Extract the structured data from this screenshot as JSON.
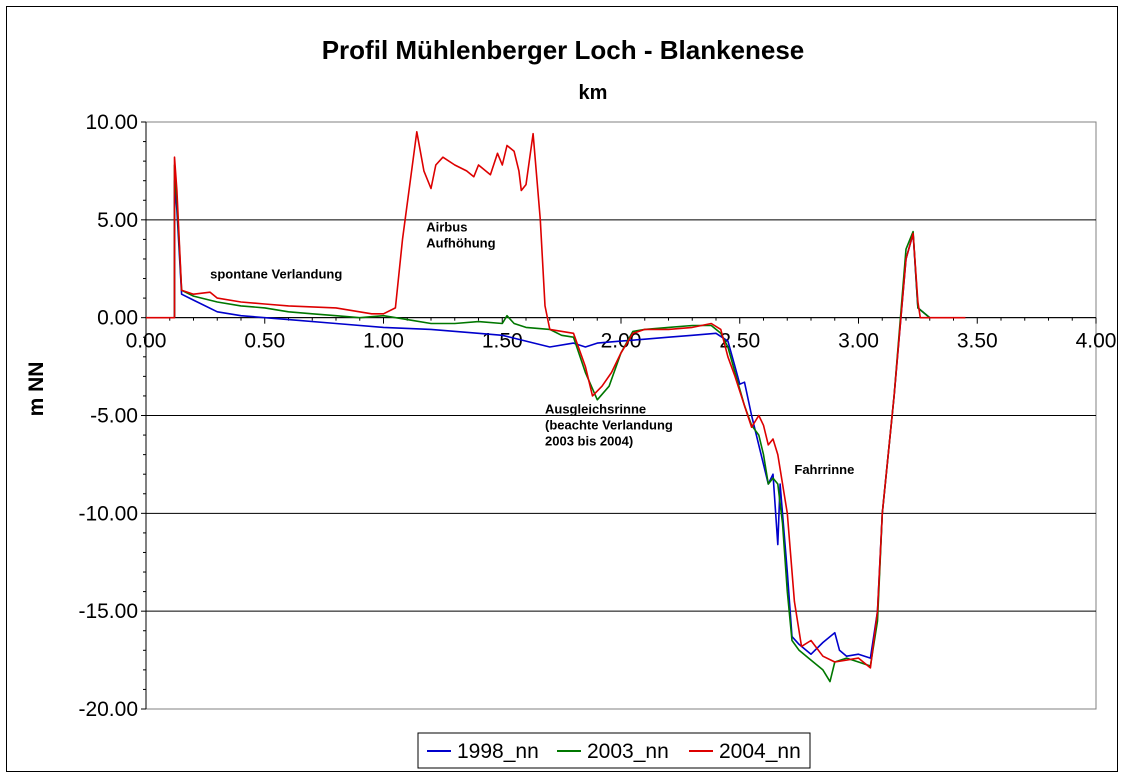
{
  "chart_data": {
    "type": "line",
    "title": "Profil Mühlenberger Loch - Blankenese",
    "xlabel": "km",
    "ylabel": "m NN",
    "xlim": [
      0,
      4
    ],
    "ylim": [
      -20,
      10
    ],
    "xticks": [
      "0.00",
      "0.50",
      "1.00",
      "1.50",
      "2.00",
      "2.50",
      "3.00",
      "3.50",
      "4.00"
    ],
    "yticks": [
      "10.00",
      "5.00",
      "0.00",
      "-5.00",
      "-10.00",
      "-15.00",
      "-20.00"
    ],
    "grid": "horizontal",
    "legend": "bottom",
    "annotations": [
      {
        "lines": [
          "spontane Verlandung"
        ],
        "x": 0.27,
        "y": 2.0
      },
      {
        "lines": [
          "Airbus",
          "Aufhöhung"
        ],
        "x": 1.18,
        "y": 4.4
      },
      {
        "lines": [
          "Ausgleichsrinne",
          "(beachte Verlandung",
          "2003 bis 2004)"
        ],
        "x": 1.68,
        "y": -4.9
      },
      {
        "lines": [
          "Fahrrinne"
        ],
        "x": 2.73,
        "y": -8.0
      }
    ],
    "series": [
      {
        "name": "1998_nn",
        "color": "#0000cc",
        "points": [
          [
            0.12,
            0
          ],
          [
            0.12,
            7.0
          ],
          [
            0.13,
            5.5
          ],
          [
            0.15,
            1.2
          ],
          [
            0.2,
            0.9
          ],
          [
            0.3,
            0.3
          ],
          [
            0.4,
            0.1
          ],
          [
            0.6,
            -0.1
          ],
          [
            0.8,
            -0.3
          ],
          [
            1.0,
            -0.5
          ],
          [
            1.2,
            -0.6
          ],
          [
            1.4,
            -0.8
          ],
          [
            1.5,
            -0.9
          ],
          [
            1.6,
            -1.2
          ],
          [
            1.7,
            -1.5
          ],
          [
            1.8,
            -1.3
          ],
          [
            1.85,
            -1.5
          ],
          [
            1.9,
            -1.3
          ],
          [
            2.0,
            -1.2
          ],
          [
            2.1,
            -1.1
          ],
          [
            2.2,
            -1.0
          ],
          [
            2.3,
            -0.9
          ],
          [
            2.4,
            -0.8
          ],
          [
            2.45,
            -1.2
          ],
          [
            2.48,
            -2.5
          ],
          [
            2.5,
            -3.4
          ],
          [
            2.52,
            -3.3
          ],
          [
            2.55,
            -5.0
          ],
          [
            2.6,
            -7.5
          ],
          [
            2.62,
            -8.5
          ],
          [
            2.64,
            -8.0
          ],
          [
            2.66,
            -11.6
          ],
          [
            2.67,
            -8.5
          ],
          [
            2.68,
            -10.0
          ],
          [
            2.7,
            -13.0
          ],
          [
            2.72,
            -16.3
          ],
          [
            2.75,
            -16.7
          ],
          [
            2.8,
            -17.2
          ],
          [
            2.85,
            -16.6
          ],
          [
            2.9,
            -16.1
          ],
          [
            2.92,
            -17.0
          ],
          [
            2.95,
            -17.3
          ],
          [
            3.0,
            -17.2
          ],
          [
            3.05,
            -17.4
          ],
          [
            3.08,
            -15.0
          ],
          [
            3.1,
            -10.0
          ],
          [
            3.15,
            -4.0
          ],
          [
            3.2,
            3.0
          ],
          [
            3.23,
            4.3
          ],
          [
            3.25,
            0.5
          ],
          [
            3.3,
            0
          ]
        ]
      },
      {
        "name": "2003_nn",
        "color": "#007700",
        "points": [
          [
            0.12,
            0
          ],
          [
            0.12,
            7.8
          ],
          [
            0.13,
            6.0
          ],
          [
            0.15,
            1.4
          ],
          [
            0.2,
            1.1
          ],
          [
            0.3,
            0.8
          ],
          [
            0.4,
            0.6
          ],
          [
            0.5,
            0.5
          ],
          [
            0.6,
            0.3
          ],
          [
            0.7,
            0.2
          ],
          [
            0.8,
            0.1
          ],
          [
            0.9,
            0.0
          ],
          [
            1.0,
            0.1
          ],
          [
            1.1,
            -0.1
          ],
          [
            1.2,
            -0.3
          ],
          [
            1.3,
            -0.3
          ],
          [
            1.4,
            -0.2
          ],
          [
            1.5,
            -0.3
          ],
          [
            1.52,
            0.1
          ],
          [
            1.55,
            -0.3
          ],
          [
            1.6,
            -0.5
          ],
          [
            1.7,
            -0.6
          ],
          [
            1.75,
            -0.9
          ],
          [
            1.8,
            -1.0
          ],
          [
            1.85,
            -2.8
          ],
          [
            1.9,
            -4.2
          ],
          [
            1.95,
            -3.5
          ],
          [
            2.0,
            -1.8
          ],
          [
            2.05,
            -0.7
          ],
          [
            2.1,
            -0.6
          ],
          [
            2.2,
            -0.5
          ],
          [
            2.3,
            -0.4
          ],
          [
            2.38,
            -0.4
          ],
          [
            2.42,
            -0.8
          ],
          [
            2.45,
            -1.5
          ],
          [
            2.48,
            -2.8
          ],
          [
            2.52,
            -4.5
          ],
          [
            2.55,
            -5.5
          ],
          [
            2.58,
            -6.0
          ],
          [
            2.6,
            -7.0
          ],
          [
            2.62,
            -8.5
          ],
          [
            2.64,
            -8.2
          ],
          [
            2.66,
            -8.5
          ],
          [
            2.68,
            -10.5
          ],
          [
            2.7,
            -14.0
          ],
          [
            2.72,
            -16.5
          ],
          [
            2.75,
            -17.0
          ],
          [
            2.8,
            -17.5
          ],
          [
            2.85,
            -18.0
          ],
          [
            2.88,
            -18.6
          ],
          [
            2.9,
            -17.6
          ],
          [
            2.95,
            -17.4
          ],
          [
            3.0,
            -17.6
          ],
          [
            3.05,
            -17.8
          ],
          [
            3.08,
            -15.5
          ],
          [
            3.1,
            -10.0
          ],
          [
            3.15,
            -4.0
          ],
          [
            3.2,
            3.5
          ],
          [
            3.23,
            4.4
          ],
          [
            3.25,
            0.5
          ],
          [
            3.3,
            0
          ]
        ]
      },
      {
        "name": "2004_nn",
        "color": "#dd0000",
        "points": [
          [
            0,
            0
          ],
          [
            0.12,
            0
          ],
          [
            0.12,
            8.2
          ],
          [
            0.13,
            6.5
          ],
          [
            0.15,
            1.4
          ],
          [
            0.2,
            1.2
          ],
          [
            0.27,
            1.3
          ],
          [
            0.3,
            1.0
          ],
          [
            0.4,
            0.8
          ],
          [
            0.5,
            0.7
          ],
          [
            0.6,
            0.6
          ],
          [
            0.8,
            0.5
          ],
          [
            0.95,
            0.2
          ],
          [
            1.0,
            0.2
          ],
          [
            1.05,
            0.5
          ],
          [
            1.08,
            4.0
          ],
          [
            1.14,
            9.5
          ],
          [
            1.17,
            7.5
          ],
          [
            1.2,
            6.6
          ],
          [
            1.22,
            7.8
          ],
          [
            1.25,
            8.2
          ],
          [
            1.3,
            7.8
          ],
          [
            1.35,
            7.5
          ],
          [
            1.38,
            7.2
          ],
          [
            1.4,
            7.8
          ],
          [
            1.45,
            7.3
          ],
          [
            1.48,
            8.4
          ],
          [
            1.5,
            7.8
          ],
          [
            1.52,
            8.8
          ],
          [
            1.55,
            8.5
          ],
          [
            1.57,
            7.5
          ],
          [
            1.58,
            6.5
          ],
          [
            1.6,
            6.8
          ],
          [
            1.63,
            9.4
          ],
          [
            1.66,
            5.0
          ],
          [
            1.68,
            0.6
          ],
          [
            1.7,
            -0.6
          ],
          [
            1.8,
            -0.8
          ],
          [
            1.85,
            -2.5
          ],
          [
            1.88,
            -4.0
          ],
          [
            1.92,
            -3.5
          ],
          [
            1.96,
            -2.8
          ],
          [
            2.0,
            -1.8
          ],
          [
            2.05,
            -0.8
          ],
          [
            2.1,
            -0.6
          ],
          [
            2.2,
            -0.6
          ],
          [
            2.3,
            -0.5
          ],
          [
            2.38,
            -0.3
          ],
          [
            2.42,
            -0.6
          ],
          [
            2.45,
            -2.0
          ],
          [
            2.48,
            -3.0
          ],
          [
            2.52,
            -4.5
          ],
          [
            2.55,
            -5.6
          ],
          [
            2.58,
            -5.0
          ],
          [
            2.6,
            -5.5
          ],
          [
            2.62,
            -6.5
          ],
          [
            2.64,
            -6.2
          ],
          [
            2.66,
            -7.0
          ],
          [
            2.7,
            -10.0
          ],
          [
            2.73,
            -14.5
          ],
          [
            2.76,
            -16.8
          ],
          [
            2.8,
            -16.5
          ],
          [
            2.85,
            -17.3
          ],
          [
            2.9,
            -17.6
          ],
          [
            2.95,
            -17.5
          ],
          [
            3.0,
            -17.4
          ],
          [
            3.05,
            -17.9
          ],
          [
            3.08,
            -15.0
          ],
          [
            3.1,
            -10.0
          ],
          [
            3.15,
            -4.0
          ],
          [
            3.2,
            3.0
          ],
          [
            3.23,
            4.3
          ],
          [
            3.25,
            0.8
          ],
          [
            3.26,
            0
          ],
          [
            3.45,
            0
          ]
        ]
      }
    ]
  }
}
